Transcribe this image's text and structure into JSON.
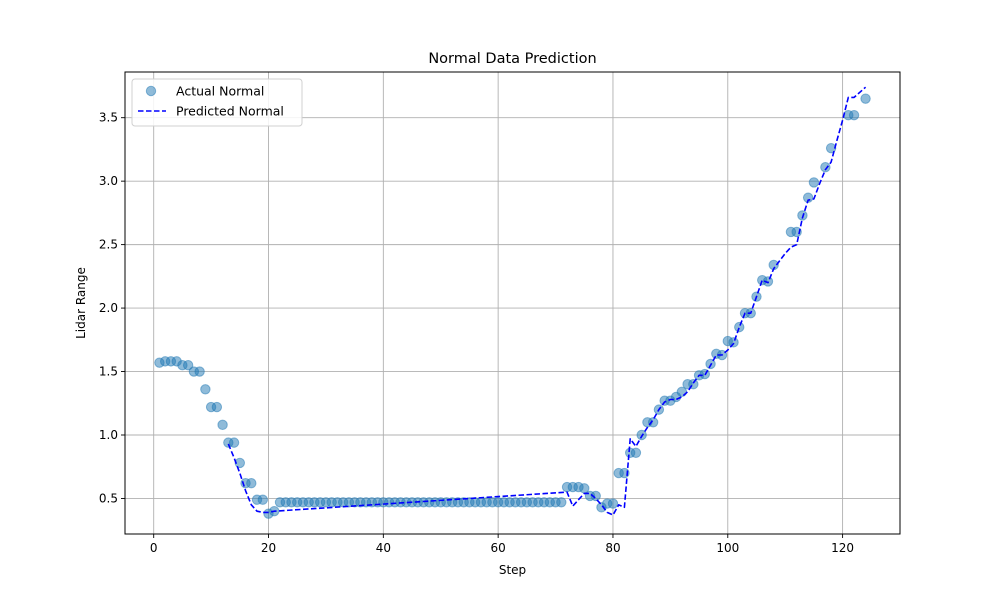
{
  "chart_data": {
    "type": "scatter",
    "title": "Normal Data Prediction",
    "xlabel": "Step",
    "ylabel": "Lidar Range",
    "xlim": [
      -5,
      130
    ],
    "ylim": [
      0.22,
      3.86
    ],
    "xticks": [
      0,
      20,
      40,
      60,
      80,
      100,
      120
    ],
    "yticks": [
      0.5,
      1.0,
      1.5,
      2.0,
      2.5,
      3.0,
      3.5
    ],
    "xtick_labels": [
      "0",
      "20",
      "40",
      "60",
      "80",
      "100",
      "120"
    ],
    "ytick_labels": [
      "0.5",
      "1.0",
      "1.5",
      "2.0",
      "2.5",
      "3.0",
      "3.5"
    ],
    "grid": true,
    "legend_position": "top-left",
    "series": [
      {
        "name": "Actual Normal",
        "kind": "scatter",
        "color": "#1f77b4",
        "x": [
          1,
          2,
          3,
          4,
          5,
          6,
          7,
          8,
          9,
          10,
          11,
          12,
          13,
          14,
          15,
          16,
          17,
          18,
          19,
          20,
          21,
          22,
          23,
          24,
          25,
          26,
          27,
          28,
          29,
          30,
          31,
          32,
          33,
          34,
          35,
          36,
          37,
          38,
          39,
          40,
          41,
          42,
          43,
          44,
          45,
          46,
          47,
          48,
          49,
          50,
          51,
          52,
          53,
          54,
          55,
          56,
          57,
          58,
          59,
          60,
          61,
          62,
          63,
          64,
          65,
          66,
          67,
          68,
          69,
          70,
          71,
          72,
          73,
          74,
          75,
          76,
          77,
          78,
          79,
          80,
          81,
          82,
          83,
          84,
          85,
          86,
          87,
          88,
          89,
          90,
          91,
          92,
          93,
          94,
          95,
          96,
          97,
          98,
          99,
          100,
          101,
          102,
          103,
          104,
          105,
          106,
          107,
          108,
          111,
          112,
          113,
          114,
          115,
          117,
          118,
          121,
          122,
          124
        ],
        "y": [
          1.57,
          1.58,
          1.58,
          1.58,
          1.55,
          1.55,
          1.5,
          1.5,
          1.36,
          1.22,
          1.22,
          1.08,
          0.94,
          0.94,
          0.78,
          0.62,
          0.62,
          0.49,
          0.49,
          0.38,
          0.4,
          0.47,
          0.47,
          0.47,
          0.47,
          0.47,
          0.47,
          0.47,
          0.47,
          0.47,
          0.47,
          0.47,
          0.47,
          0.47,
          0.47,
          0.47,
          0.47,
          0.47,
          0.47,
          0.47,
          0.47,
          0.47,
          0.47,
          0.47,
          0.47,
          0.47,
          0.47,
          0.47,
          0.47,
          0.47,
          0.47,
          0.47,
          0.47,
          0.47,
          0.47,
          0.47,
          0.47,
          0.47,
          0.47,
          0.47,
          0.47,
          0.47,
          0.47,
          0.47,
          0.47,
          0.47,
          0.47,
          0.47,
          0.47,
          0.47,
          0.47,
          0.59,
          0.59,
          0.59,
          0.58,
          0.52,
          0.52,
          0.43,
          0.46,
          0.46,
          0.7,
          0.7,
          0.86,
          0.86,
          1.0,
          1.1,
          1.1,
          1.2,
          1.27,
          1.27,
          1.3,
          1.34,
          1.4,
          1.4,
          1.47,
          1.48,
          1.56,
          1.64,
          1.63,
          1.74,
          1.73,
          1.85,
          1.96,
          1.96,
          2.09,
          2.22,
          2.21,
          2.34,
          2.6,
          2.6,
          2.73,
          2.87,
          2.99,
          3.11,
          3.26,
          3.52,
          3.52,
          3.65
        ]
      },
      {
        "name": "Predicted Normal",
        "kind": "line",
        "style": "dashed",
        "color": "#0000ff",
        "x": [
          13,
          14,
          15,
          16,
          17,
          18,
          19,
          20,
          21,
          72,
          73,
          74,
          75,
          76,
          77,
          78,
          79,
          80,
          81,
          82,
          83,
          84,
          85,
          86,
          87,
          88,
          89,
          90,
          91,
          92,
          93,
          94,
          95,
          96,
          97,
          98,
          99,
          100,
          101,
          102,
          103,
          104,
          105,
          106,
          107,
          108,
          109,
          110,
          111,
          112,
          113,
          114,
          115,
          116,
          117,
          118,
          119,
          120,
          121,
          122,
          123,
          124
        ],
        "y": [
          0.93,
          0.82,
          0.7,
          0.56,
          0.45,
          0.4,
          0.39,
          0.39,
          0.4,
          0.55,
          0.44,
          0.49,
          0.54,
          0.54,
          0.5,
          0.45,
          0.39,
          0.37,
          0.45,
          0.43,
          0.97,
          0.91,
          0.99,
          1.06,
          1.12,
          1.2,
          1.26,
          1.28,
          1.28,
          1.3,
          1.34,
          1.41,
          1.47,
          1.47,
          1.55,
          1.63,
          1.63,
          1.67,
          1.72,
          1.85,
          1.96,
          1.96,
          2.09,
          2.22,
          2.2,
          2.31,
          2.37,
          2.43,
          2.48,
          2.5,
          2.71,
          2.85,
          2.86,
          2.98,
          3.09,
          3.15,
          3.32,
          3.48,
          3.66,
          3.66,
          3.7,
          3.74
        ]
      }
    ]
  }
}
